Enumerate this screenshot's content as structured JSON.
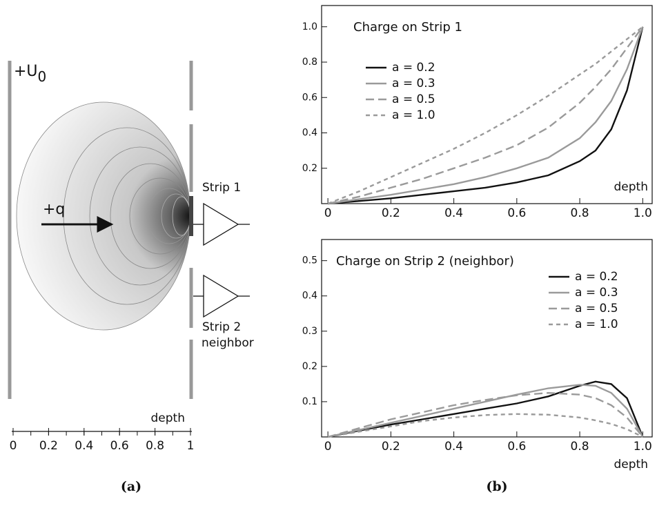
{
  "diagram": {
    "voltage": {
      "text": "+U",
      "subscript": "0"
    },
    "charge": "+q",
    "strip1": "Strip 1",
    "strip2": "Strip 2",
    "strip2_note": "neighbor",
    "axis_label": "depth",
    "axis": {
      "lim": [
        0,
        1
      ],
      "ticks": [
        0,
        0.2,
        0.4,
        0.6,
        0.8,
        1
      ]
    },
    "caption": "(a)"
  },
  "caption_b": "(b)",
  "chart_data": [
    {
      "type": "line",
      "title": "Charge on Strip 1",
      "x_label": "depth",
      "legend": "upper left",
      "x": [
        0,
        0.1,
        0.2,
        0.3,
        0.4,
        0.5,
        0.6,
        0.7,
        0.8,
        0.85,
        0.9,
        0.95,
        1.0
      ],
      "xlim": [
        -0.02,
        1.03
      ],
      "xticks": [
        0,
        0.2,
        0.4,
        0.6,
        0.8,
        {
          "value": 1,
          "label": "1.0"
        }
      ],
      "ylim": [
        0,
        1.12
      ],
      "yticks": [
        0.2,
        0.4,
        0.6,
        0.8,
        {
          "value": 1,
          "label": "1.0"
        }
      ],
      "series": [
        {
          "name": "a = 0.2",
          "color": "#111111",
          "linestyle": "solid",
          "values": [
            0,
            0.015,
            0.03,
            0.05,
            0.07,
            0.09,
            0.12,
            0.16,
            0.24,
            0.3,
            0.42,
            0.64,
            1.0
          ]
        },
        {
          "name": "a = 0.3",
          "color": "#9a9a9a",
          "linestyle": "solid",
          "values": [
            0,
            0.025,
            0.05,
            0.08,
            0.11,
            0.15,
            0.2,
            0.26,
            0.37,
            0.46,
            0.58,
            0.76,
            1.0
          ]
        },
        {
          "name": "a = 0.5",
          "color": "#9a9a9a",
          "linestyle": "dashed",
          "values": [
            0,
            0.04,
            0.09,
            0.14,
            0.2,
            0.26,
            0.33,
            0.43,
            0.57,
            0.66,
            0.76,
            0.88,
            1.0
          ]
        },
        {
          "name": "a = 1.0",
          "color": "#9a9a9a",
          "linestyle": "short-dashed",
          "values": [
            0,
            0.07,
            0.15,
            0.23,
            0.31,
            0.4,
            0.5,
            0.61,
            0.73,
            0.79,
            0.86,
            0.93,
            1.0
          ]
        }
      ]
    },
    {
      "type": "line",
      "title": "Charge on Strip 2 (neighbor)",
      "x_label": "depth",
      "legend": "upper right",
      "x": [
        0,
        0.1,
        0.2,
        0.3,
        0.4,
        0.5,
        0.6,
        0.7,
        0.8,
        0.85,
        0.9,
        0.95,
        1.0
      ],
      "xlim": [
        -0.02,
        1.03
      ],
      "xticks": [
        0,
        0.2,
        0.4,
        0.6,
        0.8,
        {
          "value": 1,
          "label": "1.0"
        }
      ],
      "ylim": [
        0,
        0.56
      ],
      "yticks": [
        0.1,
        0.2,
        0.3,
        0.4,
        0.5
      ],
      "series": [
        {
          "name": "a = 0.2",
          "color": "#111111",
          "linestyle": "solid",
          "values": [
            0,
            0.018,
            0.035,
            0.05,
            0.065,
            0.08,
            0.095,
            0.115,
            0.145,
            0.157,
            0.15,
            0.11,
            0
          ]
        },
        {
          "name": "a = 0.3",
          "color": "#9a9a9a",
          "linestyle": "solid",
          "values": [
            0,
            0.02,
            0.04,
            0.06,
            0.08,
            0.1,
            0.12,
            0.138,
            0.148,
            0.145,
            0.125,
            0.08,
            0
          ]
        },
        {
          "name": "a = 0.5",
          "color": "#9a9a9a",
          "linestyle": "dashed",
          "values": [
            0,
            0.025,
            0.05,
            0.07,
            0.09,
            0.105,
            0.118,
            0.125,
            0.12,
            0.11,
            0.09,
            0.055,
            0
          ]
        },
        {
          "name": "a = 1.0",
          "color": "#9a9a9a",
          "linestyle": "short-dashed",
          "values": [
            0,
            0.015,
            0.03,
            0.045,
            0.055,
            0.062,
            0.065,
            0.063,
            0.055,
            0.047,
            0.037,
            0.022,
            0
          ]
        }
      ]
    }
  ]
}
